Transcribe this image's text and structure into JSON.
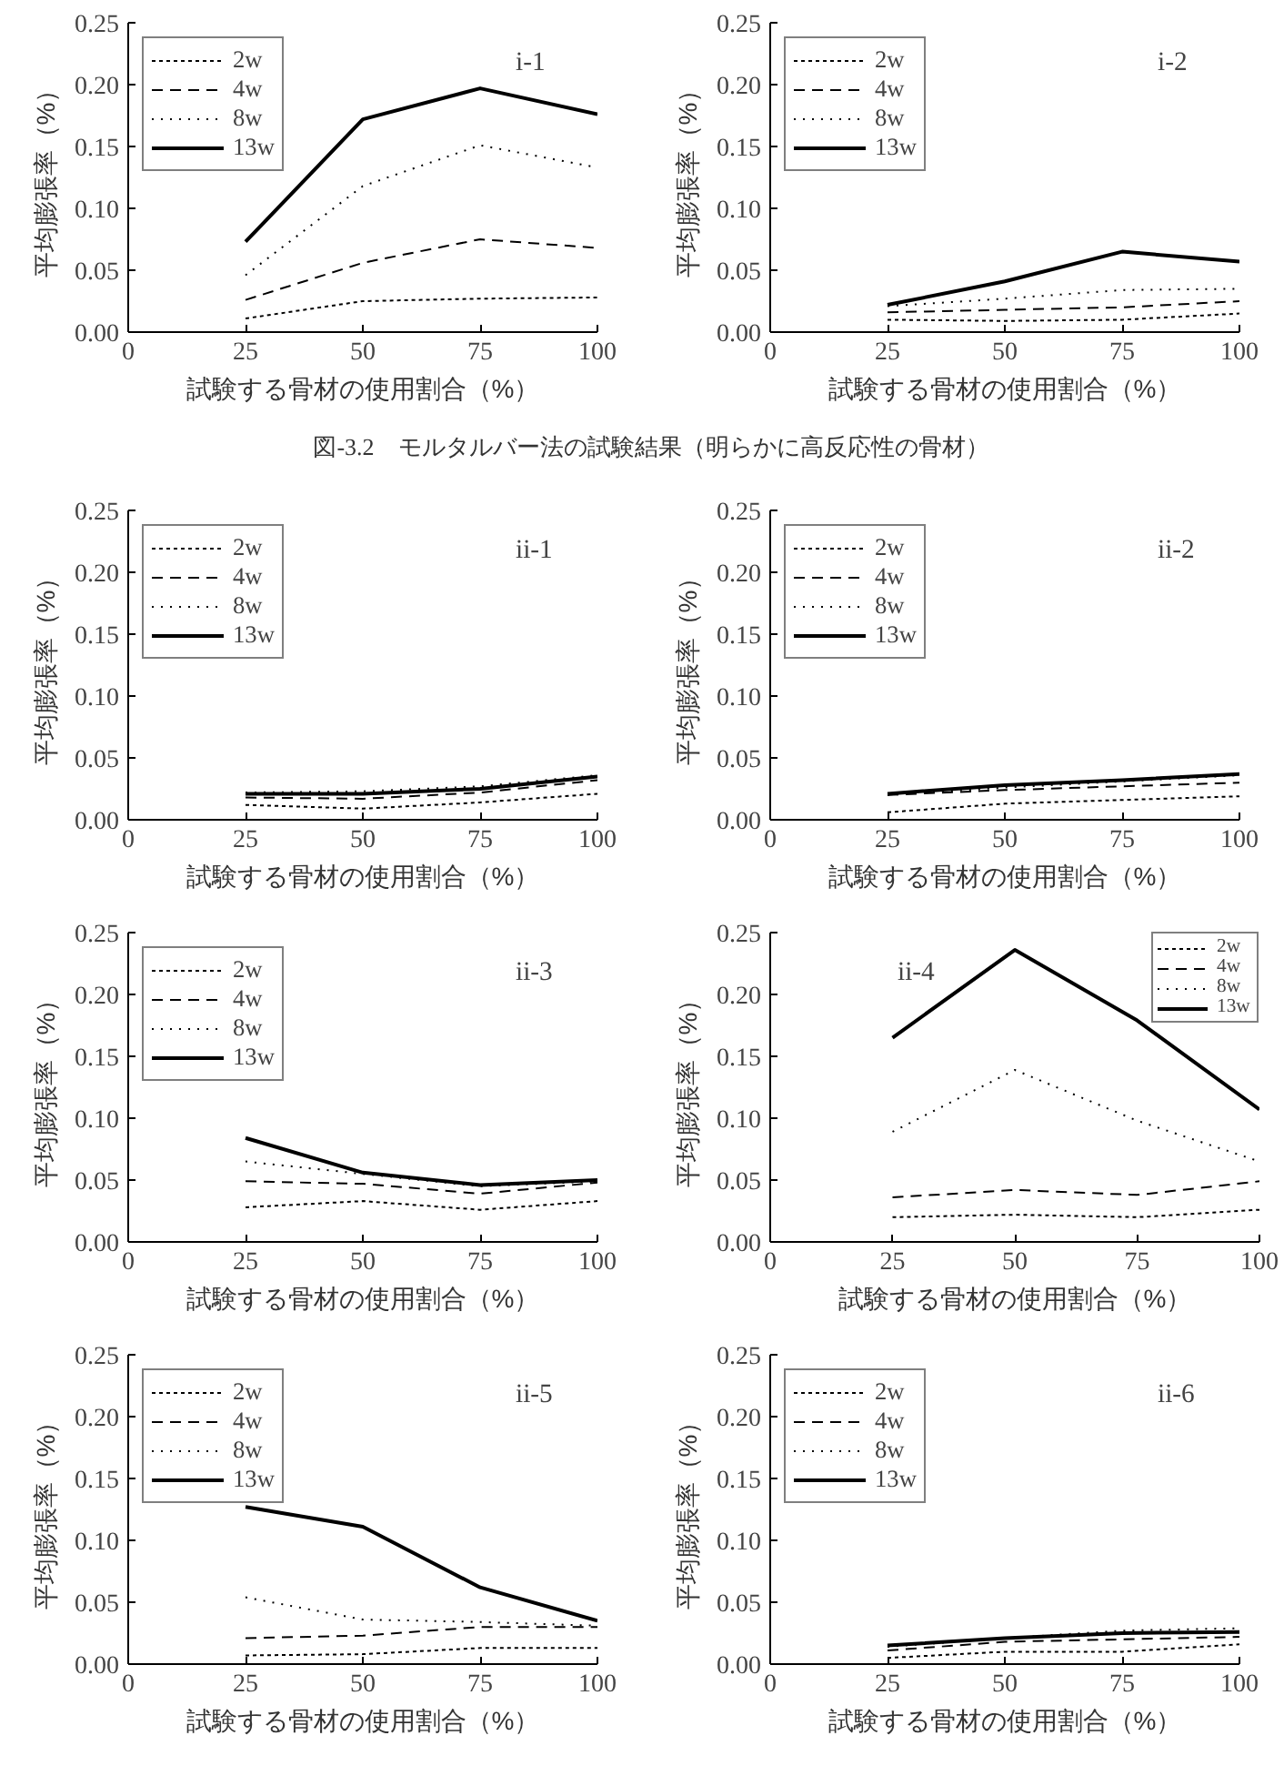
{
  "chart_data": [
    {
      "type": "line",
      "x": [
        25,
        50,
        75,
        100
      ],
      "xlim": [
        0,
        100
      ],
      "xticks": [
        0,
        25,
        50,
        75,
        100
      ],
      "ylim": [
        0,
        0.25
      ],
      "yticks": [
        {
          "value": 0,
          "label": "0.00"
        },
        0.05,
        {
          "value": 0.1,
          "label": "0.10"
        },
        0.15,
        {
          "value": 0.2,
          "label": "0.20"
        },
        0.25
      ],
      "xlabel": "試験する骨材の使用割合（%）",
      "ylabel": "平均膨張率（%）",
      "annotations": [
        "i-1"
      ],
      "legend": "top left",
      "grid": false,
      "series": [
        {
          "name": "2w",
          "color": "#000000",
          "line_style": "dotted",
          "values": [
            0.011,
            0.025,
            0.027,
            0.028
          ]
        },
        {
          "name": "4w",
          "color": "#000000",
          "line_style": "dashed",
          "values": [
            0.026,
            0.056,
            0.075,
            0.068
          ]
        },
        {
          "name": "8w",
          "color": "#000000",
          "line_style": "dotted",
          "values": [
            0.046,
            0.118,
            0.151,
            0.133
          ]
        },
        {
          "name": "13w",
          "color": "#000000",
          "line_style": "solid",
          "values": [
            0.073,
            0.172,
            0.197,
            0.176
          ]
        }
      ]
    },
    {
      "type": "line",
      "x": [
        25,
        50,
        75,
        100
      ],
      "xlim": [
        0,
        100
      ],
      "xticks": [
        0,
        25,
        50,
        75,
        100
      ],
      "ylim": [
        0,
        0.25
      ],
      "yticks": [
        {
          "value": 0,
          "label": "0.00"
        },
        0.05,
        {
          "value": 0.1,
          "label": "0.10"
        },
        0.15,
        {
          "value": 0.2,
          "label": "0.20"
        },
        0.25
      ],
      "xlabel": "試験する骨材の使用割合（%）",
      "ylabel": "平均膨張率（%）",
      "annotations": [
        "i-2"
      ],
      "legend": "top left",
      "grid": false,
      "series": [
        {
          "name": "2w",
          "color": "#000000",
          "line_style": "dotted",
          "values": [
            0.01,
            0.009,
            0.01,
            0.015
          ]
        },
        {
          "name": "4w",
          "color": "#000000",
          "line_style": "dashed",
          "values": [
            0.016,
            0.018,
            0.02,
            0.025
          ]
        },
        {
          "name": "8w",
          "color": "#000000",
          "line_style": "dotted",
          "values": [
            0.021,
            0.027,
            0.034,
            0.035
          ]
        },
        {
          "name": "13w",
          "color": "#000000",
          "line_style": "solid",
          "values": [
            0.022,
            0.041,
            0.065,
            0.057
          ]
        }
      ]
    },
    {
      "type": "other",
      "annotations": [
        "図-3.2　モルタルバー法の試験結果（明らかに高反応性の骨材）"
      ]
    },
    {
      "type": "line",
      "x": [
        25,
        50,
        75,
        100
      ],
      "xlim": [
        0,
        100
      ],
      "xticks": [
        0,
        25,
        50,
        75,
        100
      ],
      "ylim": [
        0,
        0.25
      ],
      "yticks": [
        {
          "value": 0,
          "label": "0.00"
        },
        0.05,
        {
          "value": 0.1,
          "label": "0.10"
        },
        0.15,
        {
          "value": 0.2,
          "label": "0.20"
        },
        0.25
      ],
      "xlabel": "試験する骨材の使用割合（%）",
      "ylabel": "平均膨張率（%）",
      "annotations": [
        "ii-1"
      ],
      "legend": "top left",
      "grid": false,
      "series": [
        {
          "name": "2w",
          "color": "#000000",
          "line_style": "dotted",
          "values": [
            0.012,
            0.009,
            0.014,
            0.021
          ]
        },
        {
          "name": "4w",
          "color": "#000000",
          "line_style": "dashed",
          "values": [
            0.018,
            0.017,
            0.022,
            0.032
          ]
        },
        {
          "name": "8w",
          "color": "#000000",
          "line_style": "dotted",
          "values": [
            0.022,
            0.023,
            0.027,
            0.036
          ]
        },
        {
          "name": "13w",
          "color": "#000000",
          "line_style": "solid",
          "values": [
            0.021,
            0.021,
            0.025,
            0.035
          ]
        }
      ]
    },
    {
      "type": "line",
      "x": [
        25,
        50,
        75,
        100
      ],
      "xlim": [
        0,
        100
      ],
      "xticks": [
        0,
        25,
        50,
        75,
        100
      ],
      "ylim": [
        0,
        0.25
      ],
      "yticks": [
        {
          "value": 0,
          "label": "0.00"
        },
        0.05,
        {
          "value": 0.1,
          "label": "0.10"
        },
        0.15,
        {
          "value": 0.2,
          "label": "0.20"
        },
        0.25
      ],
      "xlabel": "試験する骨材の使用割合（%）",
      "ylabel": "平均膨張率（%）",
      "annotations": [
        "ii-2"
      ],
      "legend": "top left",
      "grid": false,
      "series": [
        {
          "name": "2w",
          "color": "#000000",
          "line_style": "dotted",
          "values": [
            0.006,
            0.013,
            0.016,
            0.019
          ]
        },
        {
          "name": "4w",
          "color": "#000000",
          "line_style": "dashed",
          "values": [
            0.02,
            0.024,
            0.027,
            0.03
          ]
        },
        {
          "name": "8w",
          "color": "#000000",
          "line_style": "dotted",
          "values": [
            0.02,
            0.026,
            0.031,
            0.036
          ]
        },
        {
          "name": "13w",
          "color": "#000000",
          "line_style": "solid",
          "values": [
            0.021,
            0.028,
            0.032,
            0.037
          ]
        }
      ]
    },
    {
      "type": "line",
      "x": [
        25,
        50,
        75,
        100
      ],
      "xlim": [
        0,
        100
      ],
      "xticks": [
        0,
        25,
        50,
        75,
        100
      ],
      "ylim": [
        0,
        0.25
      ],
      "yticks": [
        {
          "value": 0,
          "label": "0.00"
        },
        0.05,
        {
          "value": 0.1,
          "label": "0.10"
        },
        0.15,
        {
          "value": 0.2,
          "label": "0.20"
        },
        0.25
      ],
      "xlabel": "試験する骨材の使用割合（%）",
      "ylabel": "平均膨張率（%）",
      "annotations": [
        "ii-3"
      ],
      "legend": "top left",
      "grid": false,
      "series": [
        {
          "name": "2w",
          "color": "#000000",
          "line_style": "dotted",
          "values": [
            0.028,
            0.033,
            0.026,
            0.033
          ]
        },
        {
          "name": "4w",
          "color": "#000000",
          "line_style": "dashed",
          "values": [
            0.049,
            0.047,
            0.039,
            0.048
          ]
        },
        {
          "name": "8w",
          "color": "#000000",
          "line_style": "dotted",
          "values": [
            0.065,
            0.055,
            0.045,
            0.049
          ]
        },
        {
          "name": "13w",
          "color": "#000000",
          "line_style": "solid",
          "values": [
            0.084,
            0.056,
            0.046,
            0.05
          ]
        }
      ]
    },
    {
      "type": "line",
      "x": [
        25,
        50,
        75,
        100
      ],
      "xlim": [
        0,
        100
      ],
      "xticks": [
        0,
        25,
        50,
        75,
        100
      ],
      "ylim": [
        0,
        0.25
      ],
      "yticks": [
        {
          "value": 0,
          "label": "0.00"
        },
        0.05,
        {
          "value": 0.1,
          "label": "0.10"
        },
        0.15,
        {
          "value": 0.2,
          "label": "0.20"
        },
        0.25
      ],
      "xlabel": "試験する骨材の使用割合（%）",
      "ylabel": "平均膨張率（%）",
      "annotations": [
        "ii-4"
      ],
      "legend": "top right",
      "grid": false,
      "series": [
        {
          "name": "2w",
          "color": "#000000",
          "line_style": "dotted",
          "values": [
            0.02,
            0.022,
            0.02,
            0.026
          ]
        },
        {
          "name": "4w",
          "color": "#000000",
          "line_style": "dashed",
          "values": [
            0.036,
            0.042,
            0.038,
            0.049
          ]
        },
        {
          "name": "8w",
          "color": "#000000",
          "line_style": "dotted",
          "values": [
            0.089,
            0.139,
            0.098,
            0.065
          ]
        },
        {
          "name": "13w",
          "color": "#000000",
          "line_style": "solid",
          "values": [
            0.165,
            0.236,
            0.179,
            0.107
          ]
        }
      ]
    },
    {
      "type": "line",
      "x": [
        25,
        50,
        75,
        100
      ],
      "xlim": [
        0,
        100
      ],
      "xticks": [
        0,
        25,
        50,
        75,
        100
      ],
      "ylim": [
        0,
        0.25
      ],
      "yticks": [
        {
          "value": 0,
          "label": "0.00"
        },
        0.05,
        {
          "value": 0.1,
          "label": "0.10"
        },
        0.15,
        {
          "value": 0.2,
          "label": "0.20"
        },
        0.25
      ],
      "xlabel": "試験する骨材の使用割合（%）",
      "ylabel": "平均膨張率（%）",
      "annotations": [
        "ii-5"
      ],
      "legend": "top left",
      "grid": false,
      "series": [
        {
          "name": "2w",
          "color": "#000000",
          "line_style": "dotted",
          "values": [
            0.007,
            0.008,
            0.013,
            0.013
          ]
        },
        {
          "name": "4w",
          "color": "#000000",
          "line_style": "dashed",
          "values": [
            0.021,
            0.023,
            0.03,
            0.03
          ]
        },
        {
          "name": "8w",
          "color": "#000000",
          "line_style": "dotted",
          "values": [
            0.054,
            0.036,
            0.034,
            0.031
          ]
        },
        {
          "name": "13w",
          "color": "#000000",
          "line_style": "solid",
          "values": [
            0.127,
            0.111,
            0.062,
            0.035
          ]
        }
      ]
    },
    {
      "type": "line",
      "x": [
        25,
        50,
        75,
        100
      ],
      "xlim": [
        0,
        100
      ],
      "xticks": [
        0,
        25,
        50,
        75,
        100
      ],
      "ylim": [
        0,
        0.25
      ],
      "yticks": [
        {
          "value": 0,
          "label": "0.00"
        },
        0.05,
        {
          "value": 0.1,
          "label": "0.10"
        },
        0.15,
        {
          "value": 0.2,
          "label": "0.20"
        },
        0.25
      ],
      "xlabel": "試験する骨材の使用割合（%）",
      "ylabel": "平均膨張率（%）",
      "annotations": [
        "ii-6"
      ],
      "legend": "top left",
      "grid": false,
      "series": [
        {
          "name": "2w",
          "color": "#000000",
          "line_style": "dotted",
          "values": [
            0.005,
            0.01,
            0.01,
            0.016
          ]
        },
        {
          "name": "4w",
          "color": "#000000",
          "line_style": "dashed",
          "values": [
            0.011,
            0.018,
            0.02,
            0.022
          ]
        },
        {
          "name": "8w",
          "color": "#000000",
          "line_style": "dotted",
          "values": [
            0.014,
            0.021,
            0.027,
            0.029
          ]
        },
        {
          "name": "13w",
          "color": "#000000",
          "line_style": "solid",
          "values": [
            0.015,
            0.021,
            0.025,
            0.026
          ]
        }
      ]
    }
  ]
}
